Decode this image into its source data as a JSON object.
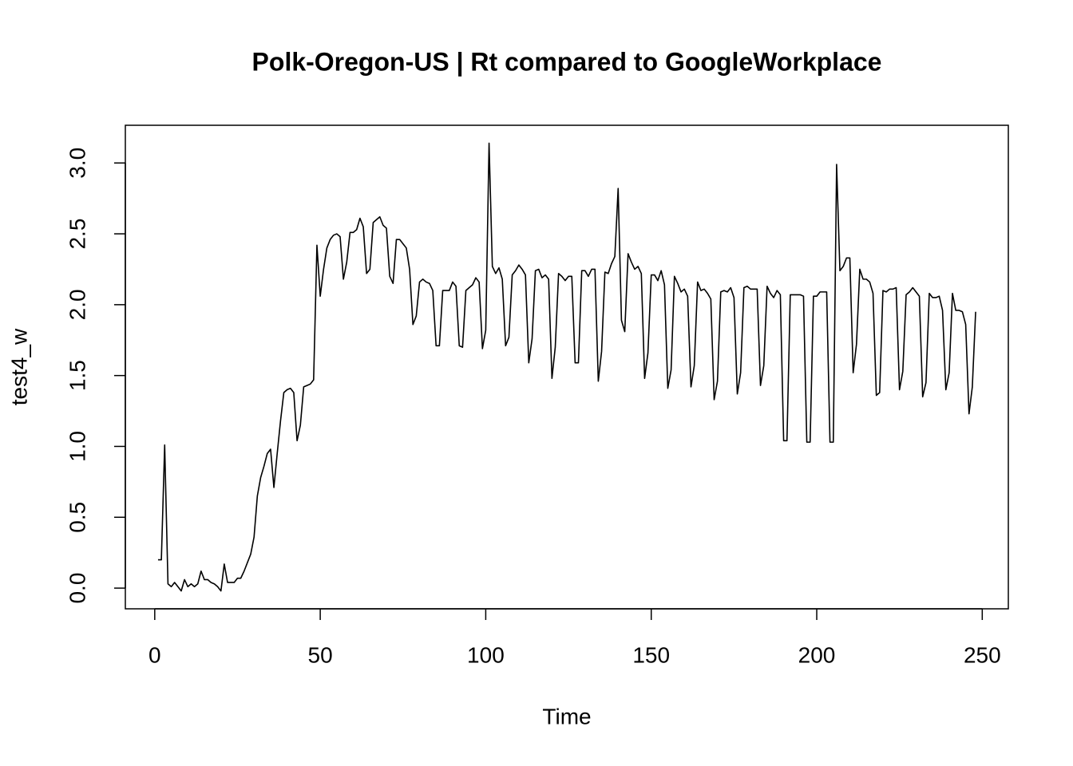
{
  "chart_data": {
    "type": "line",
    "title": "Polk-Oregon-US | Rt compared to GoogleWorkplace",
    "xlabel": "Time",
    "ylabel": "test4_w",
    "color": "#000000",
    "x": [
      1,
      2,
      3,
      4,
      5,
      6,
      7,
      8,
      9,
      10,
      11,
      12,
      13,
      14,
      15,
      16,
      17,
      18,
      19,
      20,
      21,
      22,
      23,
      24,
      25,
      26,
      27,
      28,
      29,
      30,
      31,
      32,
      33,
      34,
      35,
      36,
      37,
      38,
      39,
      40,
      41,
      42,
      43,
      44,
      45,
      46,
      47,
      48,
      49,
      50,
      51,
      52,
      53,
      54,
      55,
      56,
      57,
      58,
      59,
      60,
      61,
      62,
      63,
      64,
      65,
      66,
      67,
      68,
      69,
      70,
      71,
      72,
      73,
      74,
      75,
      76,
      77,
      78,
      79,
      80,
      81,
      82,
      83,
      84,
      85,
      86,
      87,
      88,
      89,
      90,
      91,
      92,
      93,
      94,
      95,
      96,
      97,
      98,
      99,
      100,
      101,
      102,
      103,
      104,
      105,
      106,
      107,
      108,
      109,
      110,
      111,
      112,
      113,
      114,
      115,
      116,
      117,
      118,
      119,
      120,
      121,
      122,
      123,
      124,
      125,
      126,
      127,
      128,
      129,
      130,
      131,
      132,
      133,
      134,
      135,
      136,
      137,
      138,
      139,
      140,
      141,
      142,
      143,
      144,
      145,
      146,
      147,
      148,
      149,
      150,
      151,
      152,
      153,
      154,
      155,
      156,
      157,
      158,
      159,
      160,
      161,
      162,
      163,
      164,
      165,
      166,
      167,
      168,
      169,
      170,
      171,
      172,
      173,
      174,
      175,
      176,
      177,
      178,
      179,
      180,
      181,
      182,
      183,
      184,
      185,
      186,
      187,
      188,
      189,
      190,
      191,
      192,
      193,
      194,
      195,
      196,
      197,
      198,
      199,
      200,
      201,
      202,
      203,
      204,
      205,
      206,
      207,
      208,
      209,
      210,
      211,
      212,
      213,
      214,
      215,
      216,
      217,
      218,
      219,
      220,
      221,
      222,
      223,
      224,
      225,
      226,
      227,
      228,
      229,
      230,
      231,
      232,
      233,
      234,
      235,
      236,
      237,
      238,
      239,
      240,
      241,
      242,
      243,
      244,
      245,
      246,
      247,
      248
    ],
    "values": [
      0.2,
      0.2,
      1.01,
      0.03,
      0.01,
      0.04,
      0.01,
      -0.02,
      0.06,
      0.01,
      0.03,
      0.01,
      0.03,
      0.12,
      0.06,
      0.06,
      0.04,
      0.03,
      0.01,
      -0.02,
      0.17,
      0.04,
      0.04,
      0.04,
      0.07,
      0.07,
      0.12,
      0.18,
      0.24,
      0.36,
      0.65,
      0.78,
      0.86,
      0.95,
      0.98,
      0.71,
      0.95,
      1.18,
      1.38,
      1.4,
      1.41,
      1.38,
      1.04,
      1.15,
      1.42,
      1.43,
      1.44,
      1.47,
      2.42,
      2.06,
      2.25,
      2.4,
      2.46,
      2.49,
      2.5,
      2.48,
      2.18,
      2.3,
      2.51,
      2.51,
      2.53,
      2.61,
      2.55,
      2.22,
      2.25,
      2.58,
      2.6,
      2.62,
      2.56,
      2.54,
      2.2,
      2.15,
      2.46,
      2.46,
      2.43,
      2.4,
      2.25,
      1.86,
      1.92,
      2.16,
      2.18,
      2.16,
      2.15,
      2.1,
      1.71,
      1.71,
      2.1,
      2.1,
      2.1,
      2.16,
      2.13,
      1.71,
      1.7,
      2.1,
      2.12,
      2.14,
      2.19,
      2.16,
      1.69,
      1.82,
      3.14,
      2.27,
      2.22,
      2.26,
      2.18,
      1.71,
      1.77,
      2.21,
      2.24,
      2.28,
      2.25,
      2.21,
      1.59,
      1.76,
      2.24,
      2.25,
      2.19,
      2.21,
      2.18,
      1.48,
      1.7,
      2.22,
      2.2,
      2.17,
      2.2,
      2.2,
      1.59,
      1.59,
      2.24,
      2.24,
      2.2,
      2.25,
      2.25,
      1.46,
      1.67,
      2.23,
      2.22,
      2.29,
      2.34,
      2.82,
      1.89,
      1.81,
      2.36,
      2.3,
      2.25,
      2.27,
      2.22,
      1.48,
      1.66,
      2.21,
      2.21,
      2.17,
      2.24,
      2.14,
      1.41,
      1.54,
      2.2,
      2.15,
      2.09,
      2.11,
      2.06,
      1.42,
      1.57,
      2.16,
      2.1,
      2.11,
      2.08,
      2.04,
      1.33,
      1.46,
      2.09,
      2.1,
      2.09,
      2.12,
      2.05,
      1.37,
      1.52,
      2.12,
      2.13,
      2.11,
      2.11,
      2.11,
      1.43,
      1.57,
      2.13,
      2.08,
      2.05,
      2.1,
      2.07,
      1.04,
      1.04,
      2.07,
      2.07,
      2.07,
      2.07,
      2.06,
      1.03,
      1.03,
      2.06,
      2.06,
      2.09,
      2.09,
      2.09,
      1.03,
      1.03,
      2.99,
      2.24,
      2.27,
      2.33,
      2.33,
      1.52,
      1.72,
      2.25,
      2.18,
      2.18,
      2.16,
      2.08,
      1.36,
      1.38,
      2.1,
      2.09,
      2.11,
      2.11,
      2.12,
      1.4,
      1.53,
      2.07,
      2.09,
      2.12,
      2.09,
      2.06,
      1.35,
      1.45,
      2.08,
      2.05,
      2.05,
      2.06,
      1.96,
      1.4,
      1.52,
      2.08,
      1.96,
      1.96,
      1.95,
      1.86,
      1.23,
      1.42,
      1.95
    ],
    "xlim": [
      -8.88,
      257.88
    ],
    "xticks": [
      0,
      50,
      100,
      150,
      200,
      250
    ],
    "ylim": [
      -0.146,
      3.266
    ],
    "yticks": [
      {
        "value": 0,
        "label": "0.0"
      },
      0.5,
      {
        "value": 1,
        "label": "1.0"
      },
      1.5,
      {
        "value": 2,
        "label": "2.0"
      },
      2.5,
      {
        "value": 3,
        "label": "3.0"
      }
    ]
  }
}
